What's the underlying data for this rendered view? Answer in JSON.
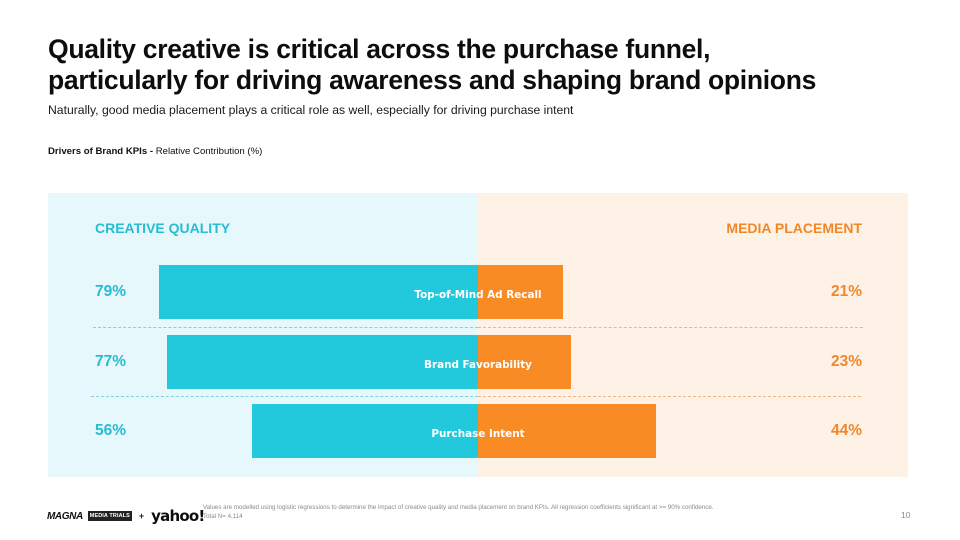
{
  "slide": {
    "title_lines": [
      "Quality creative is critical across the purchase funnel,",
      "particularly for driving awareness and shaping brand opinions"
    ],
    "subtitle": "Naturally, good media placement plays a critical role as well, especially for driving purchase intent",
    "page_number": "10"
  },
  "colors": {
    "creative_quality": "#22c9dc",
    "media_placement": "#f98b25",
    "creative_quality_text": "#27bcd3",
    "media_placement_text": "#f0882a",
    "creative_quality_bg": "#e6f8fc",
    "media_placement_bg": "#fef1e6"
  },
  "chart_data": {
    "type": "bar",
    "orientation": "horizontal-diverging",
    "title_bold": "Drivers of Brand KPIs - ",
    "title_rest": "Relative Contribution (%)",
    "categories": [
      "Top-of-Mind Ad Recall",
      "Brand Favorability",
      "Purchase Intent"
    ],
    "series": [
      {
        "name": "CREATIVE QUALITY",
        "side": "left",
        "values": [
          79,
          77,
          56
        ],
        "labels": [
          "79%",
          "77%",
          "56%"
        ]
      },
      {
        "name": "MEDIA PLACEMENT",
        "side": "right",
        "values": [
          21,
          23,
          44
        ],
        "labels": [
          "21%",
          "23%",
          "44%"
        ]
      }
    ],
    "unit": "%",
    "xlim": [
      0,
      100
    ],
    "grid": false,
    "legend": "column headers top-left / top-right"
  },
  "footer": {
    "logo_magna": "MAGNA",
    "logo_badge": "MEDIA TRIALS",
    "logo_plus": "+",
    "logo_yahoo": "yahoo!",
    "footnote_lines": [
      "Values are modelled using logistic regressions to determine the impact of creative quality and media placement on brand KPIs. All regression coefficients significant at >= 90% confidence.",
      "Total N= 4,114"
    ]
  }
}
